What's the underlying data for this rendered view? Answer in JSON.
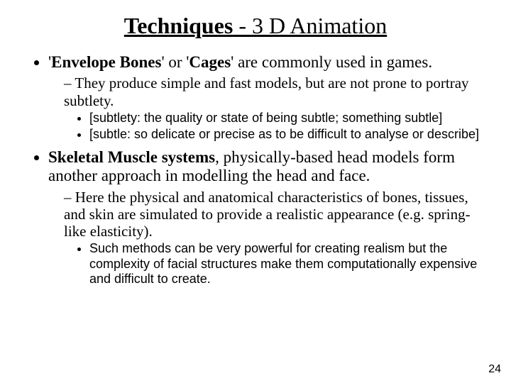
{
  "title": {
    "bold": "Techniques",
    "dash": " - ",
    "rest": "3 D Animation"
  },
  "b1": {
    "pre": "'",
    "term1": "Envelope Bones",
    "mid": "' or '",
    "term2": "Cages",
    "post": "' are commonly used in games.",
    "sub": {
      "s1": "They produce simple and fast models, but are not prone to portray subtlety.",
      "defs": {
        "d1": "[subtlety: the quality or state of being subtle; something subtle]",
        "d2": "[subtle: so delicate or precise as to be difficult to analyse or describe]"
      }
    }
  },
  "b2": {
    "term": "Skeletal Muscle systems",
    "rest": ", physically-based head models form another approach in modelling the head and face.",
    "sub": {
      "s1": "Here the physical and anatomical characteristics of bones, tissues, and skin are simulated to provide a realistic appearance (e.g. spring-like elasticity).",
      "note": "Such methods can be very powerful for creating realism but the complexity of facial structures make them computationally expensive and difficult to create."
    }
  },
  "page": "24"
}
